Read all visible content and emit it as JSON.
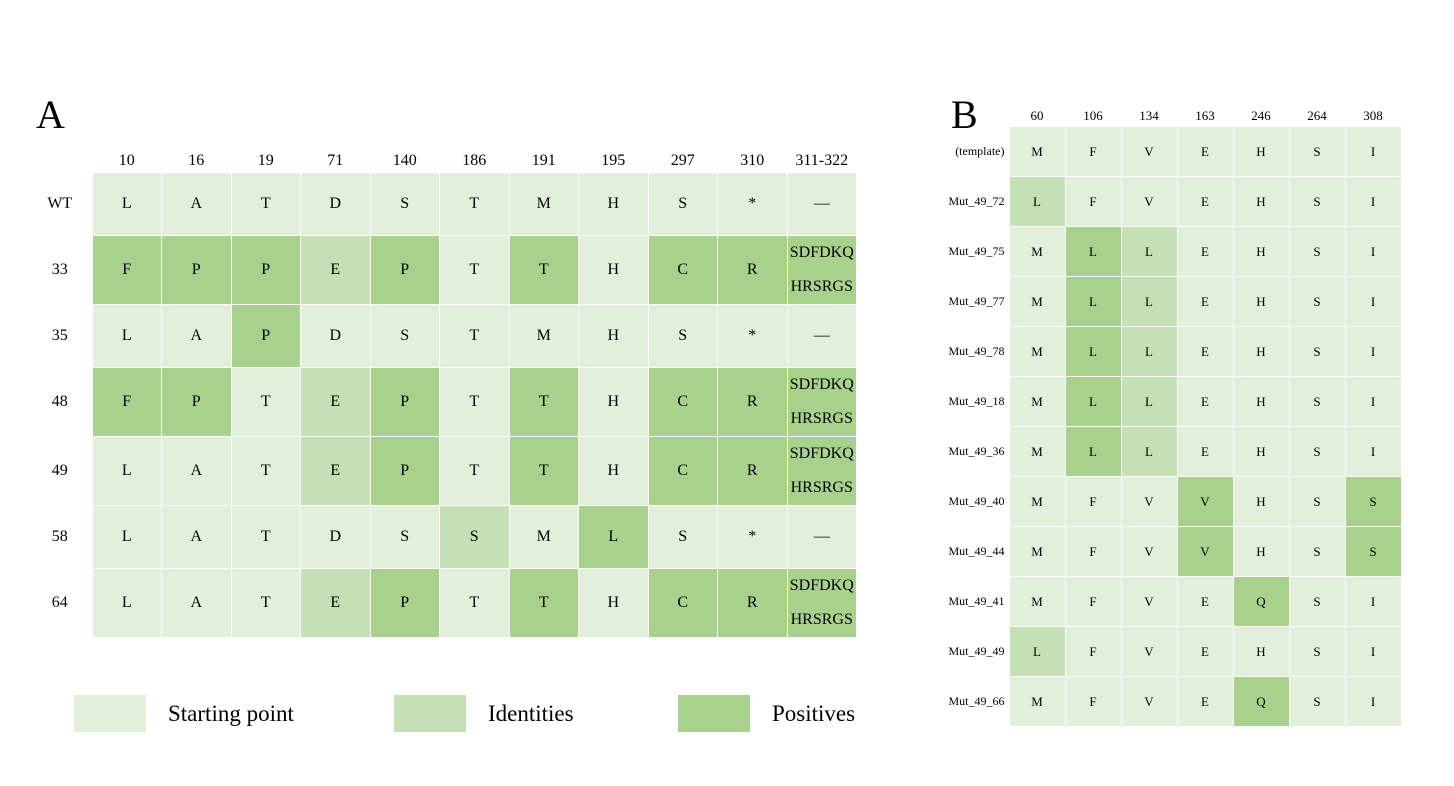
{
  "colors": {
    "start": "#e2efda",
    "identity": "#c5e0b4",
    "positive": "#a9d18e"
  },
  "panel_a": {
    "letter": "A",
    "columns": [
      "10",
      "16",
      "19",
      "71",
      "140",
      "186",
      "191",
      "195",
      "297",
      "310",
      "311-322"
    ],
    "rows": [
      {
        "label": "WT",
        "cells": [
          {
            "t": "L",
            "c": "s"
          },
          {
            "t": "A",
            "c": "s"
          },
          {
            "t": "T",
            "c": "s"
          },
          {
            "t": "D",
            "c": "s"
          },
          {
            "t": "S",
            "c": "s"
          },
          {
            "t": "T",
            "c": "s"
          },
          {
            "t": "M",
            "c": "s"
          },
          {
            "t": "H",
            "c": "s"
          },
          {
            "t": "S",
            "c": "s"
          },
          {
            "t": "*",
            "c": "s"
          },
          {
            "t": "—",
            "c": "s"
          }
        ]
      },
      {
        "label": "33",
        "cells": [
          {
            "t": "F",
            "c": "p"
          },
          {
            "t": "P",
            "c": "p"
          },
          {
            "t": "P",
            "c": "p"
          },
          {
            "t": "E",
            "c": "i"
          },
          {
            "t": "P",
            "c": "p"
          },
          {
            "t": "T",
            "c": "s"
          },
          {
            "t": "T",
            "c": "p"
          },
          {
            "t": "H",
            "c": "s"
          },
          {
            "t": "C",
            "c": "p"
          },
          {
            "t": "R",
            "c": "p"
          },
          {
            "t": "SDFDKQ\nHRSRGS",
            "c": "p"
          }
        ]
      },
      {
        "label": "35",
        "cells": [
          {
            "t": "L",
            "c": "s"
          },
          {
            "t": "A",
            "c": "s"
          },
          {
            "t": "P",
            "c": "p"
          },
          {
            "t": "D",
            "c": "s"
          },
          {
            "t": "S",
            "c": "s"
          },
          {
            "t": "T",
            "c": "s"
          },
          {
            "t": "M",
            "c": "s"
          },
          {
            "t": "H",
            "c": "s"
          },
          {
            "t": "S",
            "c": "s"
          },
          {
            "t": "*",
            "c": "s"
          },
          {
            "t": "—",
            "c": "s"
          }
        ]
      },
      {
        "label": "48",
        "cells": [
          {
            "t": "F",
            "c": "p"
          },
          {
            "t": "P",
            "c": "p"
          },
          {
            "t": "T",
            "c": "s"
          },
          {
            "t": "E",
            "c": "i"
          },
          {
            "t": "P",
            "c": "p"
          },
          {
            "t": "T",
            "c": "s"
          },
          {
            "t": "T",
            "c": "p"
          },
          {
            "t": "H",
            "c": "s"
          },
          {
            "t": "C",
            "c": "p"
          },
          {
            "t": "R",
            "c": "p"
          },
          {
            "t": "SDFDKQ\nHRSRGS",
            "c": "p"
          }
        ]
      },
      {
        "label": "49",
        "cells": [
          {
            "t": "L",
            "c": "s"
          },
          {
            "t": "A",
            "c": "s"
          },
          {
            "t": "T",
            "c": "s"
          },
          {
            "t": "E",
            "c": "i"
          },
          {
            "t": "P",
            "c": "p"
          },
          {
            "t": "T",
            "c": "s"
          },
          {
            "t": "T",
            "c": "p"
          },
          {
            "t": "H",
            "c": "s"
          },
          {
            "t": "C",
            "c": "p"
          },
          {
            "t": "R",
            "c": "p"
          },
          {
            "t": "SDFDKQ\nHRSRGS",
            "c": "p"
          }
        ]
      },
      {
        "label": "58",
        "cells": [
          {
            "t": "L",
            "c": "s"
          },
          {
            "t": "A",
            "c": "s"
          },
          {
            "t": "T",
            "c": "s"
          },
          {
            "t": "D",
            "c": "s"
          },
          {
            "t": "S",
            "c": "s"
          },
          {
            "t": "S",
            "c": "i"
          },
          {
            "t": "M",
            "c": "s"
          },
          {
            "t": "L",
            "c": "p"
          },
          {
            "t": "S",
            "c": "s"
          },
          {
            "t": "*",
            "c": "s"
          },
          {
            "t": "—",
            "c": "s"
          }
        ]
      },
      {
        "label": "64",
        "cells": [
          {
            "t": "L",
            "c": "s"
          },
          {
            "t": "A",
            "c": "s"
          },
          {
            "t": "T",
            "c": "s"
          },
          {
            "t": "E",
            "c": "i"
          },
          {
            "t": "P",
            "c": "p"
          },
          {
            "t": "T",
            "c": "s"
          },
          {
            "t": "T",
            "c": "p"
          },
          {
            "t": "H",
            "c": "s"
          },
          {
            "t": "C",
            "c": "p"
          },
          {
            "t": "R",
            "c": "p"
          },
          {
            "t": "SDFDKQ\nHRSRGS",
            "c": "p"
          }
        ]
      }
    ]
  },
  "panel_b": {
    "letter": "B",
    "columns": [
      "60",
      "106",
      "134",
      "163",
      "246",
      "264",
      "308"
    ],
    "rows": [
      {
        "label": "(template)",
        "cells": [
          {
            "t": "M",
            "c": "s"
          },
          {
            "t": "F",
            "c": "s"
          },
          {
            "t": "V",
            "c": "s"
          },
          {
            "t": "E",
            "c": "s"
          },
          {
            "t": "H",
            "c": "s"
          },
          {
            "t": "S",
            "c": "s"
          },
          {
            "t": "I",
            "c": "s"
          }
        ]
      },
      {
        "label": "Mut_49_72",
        "cells": [
          {
            "t": "L",
            "c": "i"
          },
          {
            "t": "F",
            "c": "s"
          },
          {
            "t": "V",
            "c": "s"
          },
          {
            "t": "E",
            "c": "s"
          },
          {
            "t": "H",
            "c": "s"
          },
          {
            "t": "S",
            "c": "s"
          },
          {
            "t": "I",
            "c": "s"
          }
        ]
      },
      {
        "label": "Mut_49_75",
        "cells": [
          {
            "t": "M",
            "c": "s"
          },
          {
            "t": "L",
            "c": "p"
          },
          {
            "t": "L",
            "c": "i"
          },
          {
            "t": "E",
            "c": "s"
          },
          {
            "t": "H",
            "c": "s"
          },
          {
            "t": "S",
            "c": "s"
          },
          {
            "t": "I",
            "c": "s"
          }
        ]
      },
      {
        "label": "Mut_49_77",
        "cells": [
          {
            "t": "M",
            "c": "s"
          },
          {
            "t": "L",
            "c": "p"
          },
          {
            "t": "L",
            "c": "i"
          },
          {
            "t": "E",
            "c": "s"
          },
          {
            "t": "H",
            "c": "s"
          },
          {
            "t": "S",
            "c": "s"
          },
          {
            "t": "I",
            "c": "s"
          }
        ]
      },
      {
        "label": "Mut_49_78",
        "cells": [
          {
            "t": "M",
            "c": "s"
          },
          {
            "t": "L",
            "c": "p"
          },
          {
            "t": "L",
            "c": "i"
          },
          {
            "t": "E",
            "c": "s"
          },
          {
            "t": "H",
            "c": "s"
          },
          {
            "t": "S",
            "c": "s"
          },
          {
            "t": "I",
            "c": "s"
          }
        ]
      },
      {
        "label": "Mut_49_18",
        "cells": [
          {
            "t": "M",
            "c": "s"
          },
          {
            "t": "L",
            "c": "p"
          },
          {
            "t": "L",
            "c": "i"
          },
          {
            "t": "E",
            "c": "s"
          },
          {
            "t": "H",
            "c": "s"
          },
          {
            "t": "S",
            "c": "s"
          },
          {
            "t": "I",
            "c": "s"
          }
        ]
      },
      {
        "label": "Mut_49_36",
        "cells": [
          {
            "t": "M",
            "c": "s"
          },
          {
            "t": "L",
            "c": "p"
          },
          {
            "t": "L",
            "c": "i"
          },
          {
            "t": "E",
            "c": "s"
          },
          {
            "t": "H",
            "c": "s"
          },
          {
            "t": "S",
            "c": "s"
          },
          {
            "t": "I",
            "c": "s"
          }
        ]
      },
      {
        "label": "Mut_49_40",
        "cells": [
          {
            "t": "M",
            "c": "s"
          },
          {
            "t": "F",
            "c": "s"
          },
          {
            "t": "V",
            "c": "s"
          },
          {
            "t": "V",
            "c": "p"
          },
          {
            "t": "H",
            "c": "s"
          },
          {
            "t": "S",
            "c": "s"
          },
          {
            "t": "S",
            "c": "p"
          }
        ]
      },
      {
        "label": "Mut_49_44",
        "cells": [
          {
            "t": "M",
            "c": "s"
          },
          {
            "t": "F",
            "c": "s"
          },
          {
            "t": "V",
            "c": "s"
          },
          {
            "t": "V",
            "c": "p"
          },
          {
            "t": "H",
            "c": "s"
          },
          {
            "t": "S",
            "c": "s"
          },
          {
            "t": "S",
            "c": "p"
          }
        ]
      },
      {
        "label": "Mut_49_41",
        "cells": [
          {
            "t": "M",
            "c": "s"
          },
          {
            "t": "F",
            "c": "s"
          },
          {
            "t": "V",
            "c": "s"
          },
          {
            "t": "E",
            "c": "s"
          },
          {
            "t": "Q",
            "c": "p"
          },
          {
            "t": "S",
            "c": "s"
          },
          {
            "t": "I",
            "c": "s"
          }
        ]
      },
      {
        "label": "Mut_49_49",
        "cells": [
          {
            "t": "L",
            "c": "i"
          },
          {
            "t": "F",
            "c": "s"
          },
          {
            "t": "V",
            "c": "s"
          },
          {
            "t": "E",
            "c": "s"
          },
          {
            "t": "H",
            "c": "s"
          },
          {
            "t": "S",
            "c": "s"
          },
          {
            "t": "I",
            "c": "s"
          }
        ]
      },
      {
        "label": "Mut_49_66",
        "cells": [
          {
            "t": "M",
            "c": "s"
          },
          {
            "t": "F",
            "c": "s"
          },
          {
            "t": "V",
            "c": "s"
          },
          {
            "t": "E",
            "c": "s"
          },
          {
            "t": "Q",
            "c": "p"
          },
          {
            "t": "S",
            "c": "s"
          },
          {
            "t": "I",
            "c": "s"
          }
        ]
      }
    ]
  },
  "legend": {
    "starting_point": "Starting point",
    "identities": "Identities",
    "positives": "Positives"
  }
}
